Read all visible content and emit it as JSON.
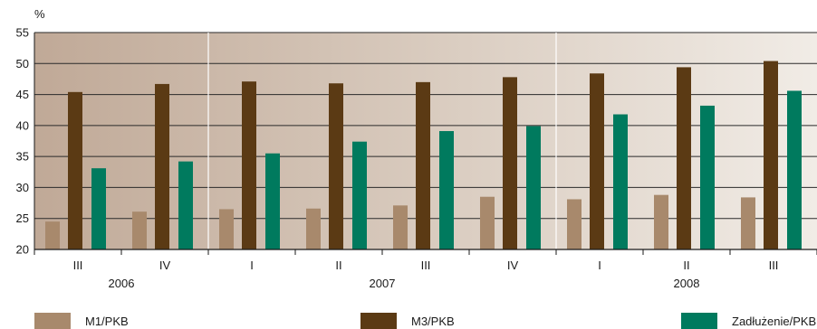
{
  "chart_data": {
    "type": "bar",
    "ylabel": "%",
    "ylim": [
      20,
      55
    ],
    "yticks": [
      20,
      25,
      30,
      35,
      40,
      45,
      50,
      55
    ],
    "grid": true,
    "legend_position": "bottom",
    "categories": [
      "III",
      "IV",
      "I",
      "II",
      "III",
      "IV",
      "I",
      "II",
      "III"
    ],
    "years": [
      {
        "label": "2006",
        "span": [
          0,
          1
        ]
      },
      {
        "label": "2007",
        "span": [
          2,
          5
        ]
      },
      {
        "label": "2008",
        "span": [
          6,
          8
        ]
      }
    ],
    "series": [
      {
        "name": "M1/PKB",
        "color": "#a8896c",
        "values": [
          24.5,
          26.1,
          26.5,
          26.6,
          27.1,
          28.5,
          28.1,
          28.8,
          28.4
        ]
      },
      {
        "name": "M3/PKB",
        "color": "#5b3a14",
        "values": [
          45.4,
          46.7,
          47.1,
          46.8,
          47.0,
          47.8,
          48.4,
          49.4,
          50.4
        ]
      },
      {
        "name": "Zadłużenie/PKB",
        "color": "#007a5e",
        "values": [
          33.1,
          34.2,
          35.5,
          37.4,
          39.1,
          39.9,
          41.8,
          43.2,
          45.6
        ]
      }
    ]
  }
}
